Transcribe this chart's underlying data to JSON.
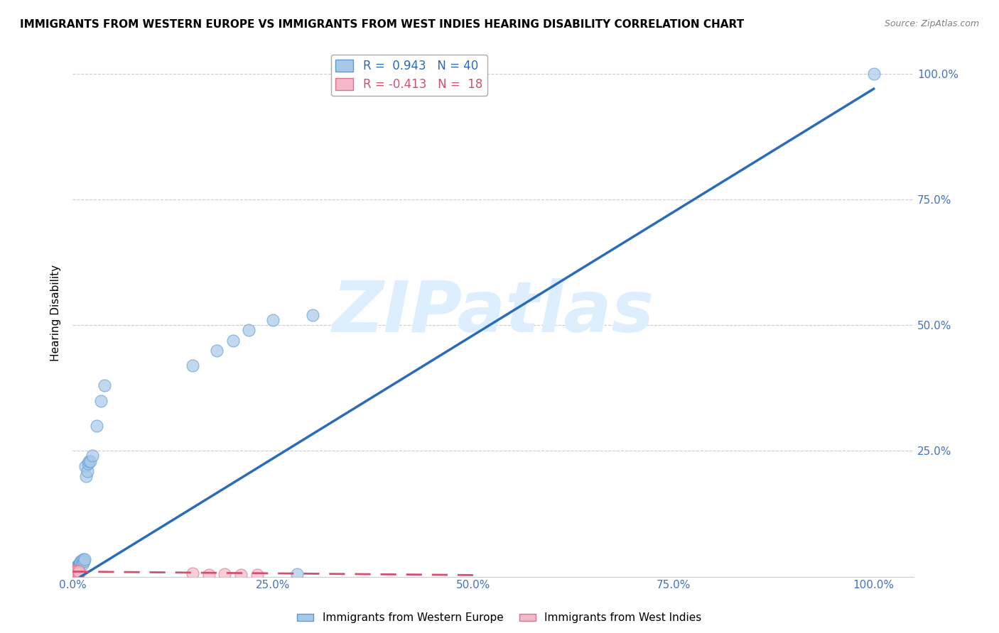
{
  "title": "IMMIGRANTS FROM WESTERN EUROPE VS IMMIGRANTS FROM WEST INDIES HEARING DISABILITY CORRELATION CHART",
  "source": "Source: ZipAtlas.com",
  "ylabel": "Hearing Disability",
  "blue_R": 0.943,
  "blue_N": 40,
  "pink_R": -0.413,
  "pink_N": 18,
  "blue_scatter_x": [
    0.001,
    0.002,
    0.002,
    0.003,
    0.003,
    0.004,
    0.004,
    0.005,
    0.005,
    0.006,
    0.006,
    0.007,
    0.008,
    0.008,
    0.009,
    0.01,
    0.01,
    0.011,
    0.012,
    0.013,
    0.014,
    0.015,
    0.016,
    0.017,
    0.018,
    0.019,
    0.02,
    0.022,
    0.025,
    0.03,
    0.035,
    0.04,
    0.15,
    0.18,
    0.2,
    0.22,
    0.25,
    0.28,
    0.3,
    1.0
  ],
  "blue_scatter_y": [
    0.005,
    0.008,
    0.01,
    0.01,
    0.015,
    0.012,
    0.018,
    0.015,
    0.02,
    0.018,
    0.022,
    0.02,
    0.025,
    0.022,
    0.025,
    0.028,
    0.03,
    0.032,
    0.025,
    0.035,
    0.03,
    0.035,
    0.22,
    0.2,
    0.21,
    0.225,
    0.23,
    0.23,
    0.24,
    0.3,
    0.35,
    0.38,
    0.42,
    0.45,
    0.47,
    0.49,
    0.51,
    0.005,
    0.52,
    1.0
  ],
  "pink_scatter_x": [
    0.001,
    0.002,
    0.002,
    0.003,
    0.003,
    0.004,
    0.004,
    0.005,
    0.006,
    0.006,
    0.007,
    0.008,
    0.008,
    0.15,
    0.17,
    0.19,
    0.21,
    0.23
  ],
  "pink_scatter_y": [
    0.005,
    0.008,
    0.01,
    0.007,
    0.012,
    0.008,
    0.01,
    0.006,
    0.008,
    0.01,
    0.006,
    0.008,
    0.01,
    0.006,
    0.004,
    0.005,
    0.003,
    0.004
  ],
  "blue_line_x0": 0.0,
  "blue_line_x1": 1.0,
  "blue_line_y0": -0.01,
  "blue_line_y1": 0.97,
  "pink_line_x0": 0.0,
  "pink_line_x1": 0.5,
  "pink_line_y0": 0.01,
  "pink_line_y1": 0.003,
  "xlim": [
    0.0,
    1.05
  ],
  "ylim": [
    0.0,
    1.05
  ],
  "xtick_vals": [
    0.0,
    0.25,
    0.5,
    0.75,
    1.0
  ],
  "xtick_labels": [
    "0.0%",
    "25.0%",
    "50.0%",
    "75.0%",
    "100.0%"
  ],
  "right_ytick_vals": [
    0.25,
    0.5,
    0.75,
    1.0
  ],
  "right_ytick_labels": [
    "25.0%",
    "50.0%",
    "75.0%",
    "100.0%"
  ],
  "blue_color": "#a8c8e8",
  "blue_edge_color": "#5b9bd5",
  "blue_line_color": "#2b6cb8",
  "pink_color": "#f4b8c8",
  "pink_edge_color": "#e07090",
  "pink_line_color": "#d45070",
  "grid_color": "#cccccc",
  "watermark_text": "ZIPatlas",
  "watermark_color": "#ddeeff",
  "legend_label_blue": "Immigrants from Western Europe",
  "legend_label_pink": "Immigrants from West Indies",
  "tick_color": "#4472c4",
  "title_fontsize": 11,
  "source_fontsize": 9,
  "tick_fontsize": 11,
  "ylabel_fontsize": 11
}
